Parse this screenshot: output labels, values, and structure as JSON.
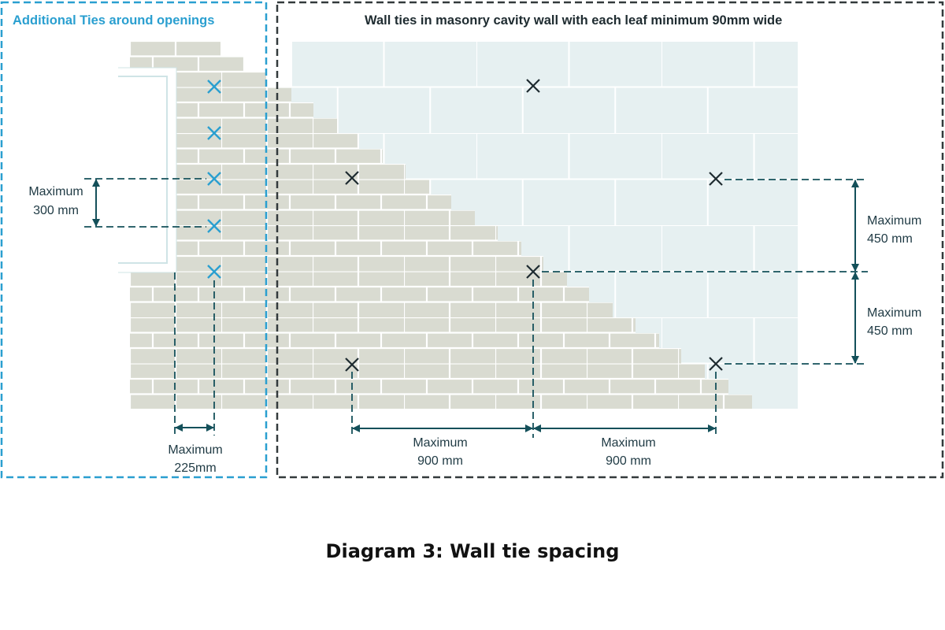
{
  "panels": {
    "openings": {
      "title": "Additional Ties around openings",
      "vertical_label": [
        "Maximum",
        "300 mm"
      ],
      "horizontal_label": [
        "Maximum",
        "225mm"
      ]
    },
    "cavity": {
      "title": "Wall ties in masonry cavity wall with each leaf minimum 90mm wide",
      "vertical_label_upper": [
        "Maximum",
        "450 mm"
      ],
      "vertical_label_lower": [
        "Maximum",
        "450 mm"
      ],
      "horizontal_label_left": [
        "Maximum",
        "900 mm"
      ],
      "horizontal_label_right": [
        "Maximum",
        "900 mm"
      ]
    }
  },
  "caption": "Diagram 3: Wall tie spacing",
  "colors": {
    "accent_blue": "#2a9fd0",
    "dark": "#1e2b30",
    "dimension_teal": "#14505a",
    "brick_fill": "#d9dbd1",
    "block_fill": "#e6f0f1",
    "mortar": "#ffffff"
  },
  "icons": [
    "wall-tie-cross-icon",
    "dimension-arrow-icon"
  ]
}
